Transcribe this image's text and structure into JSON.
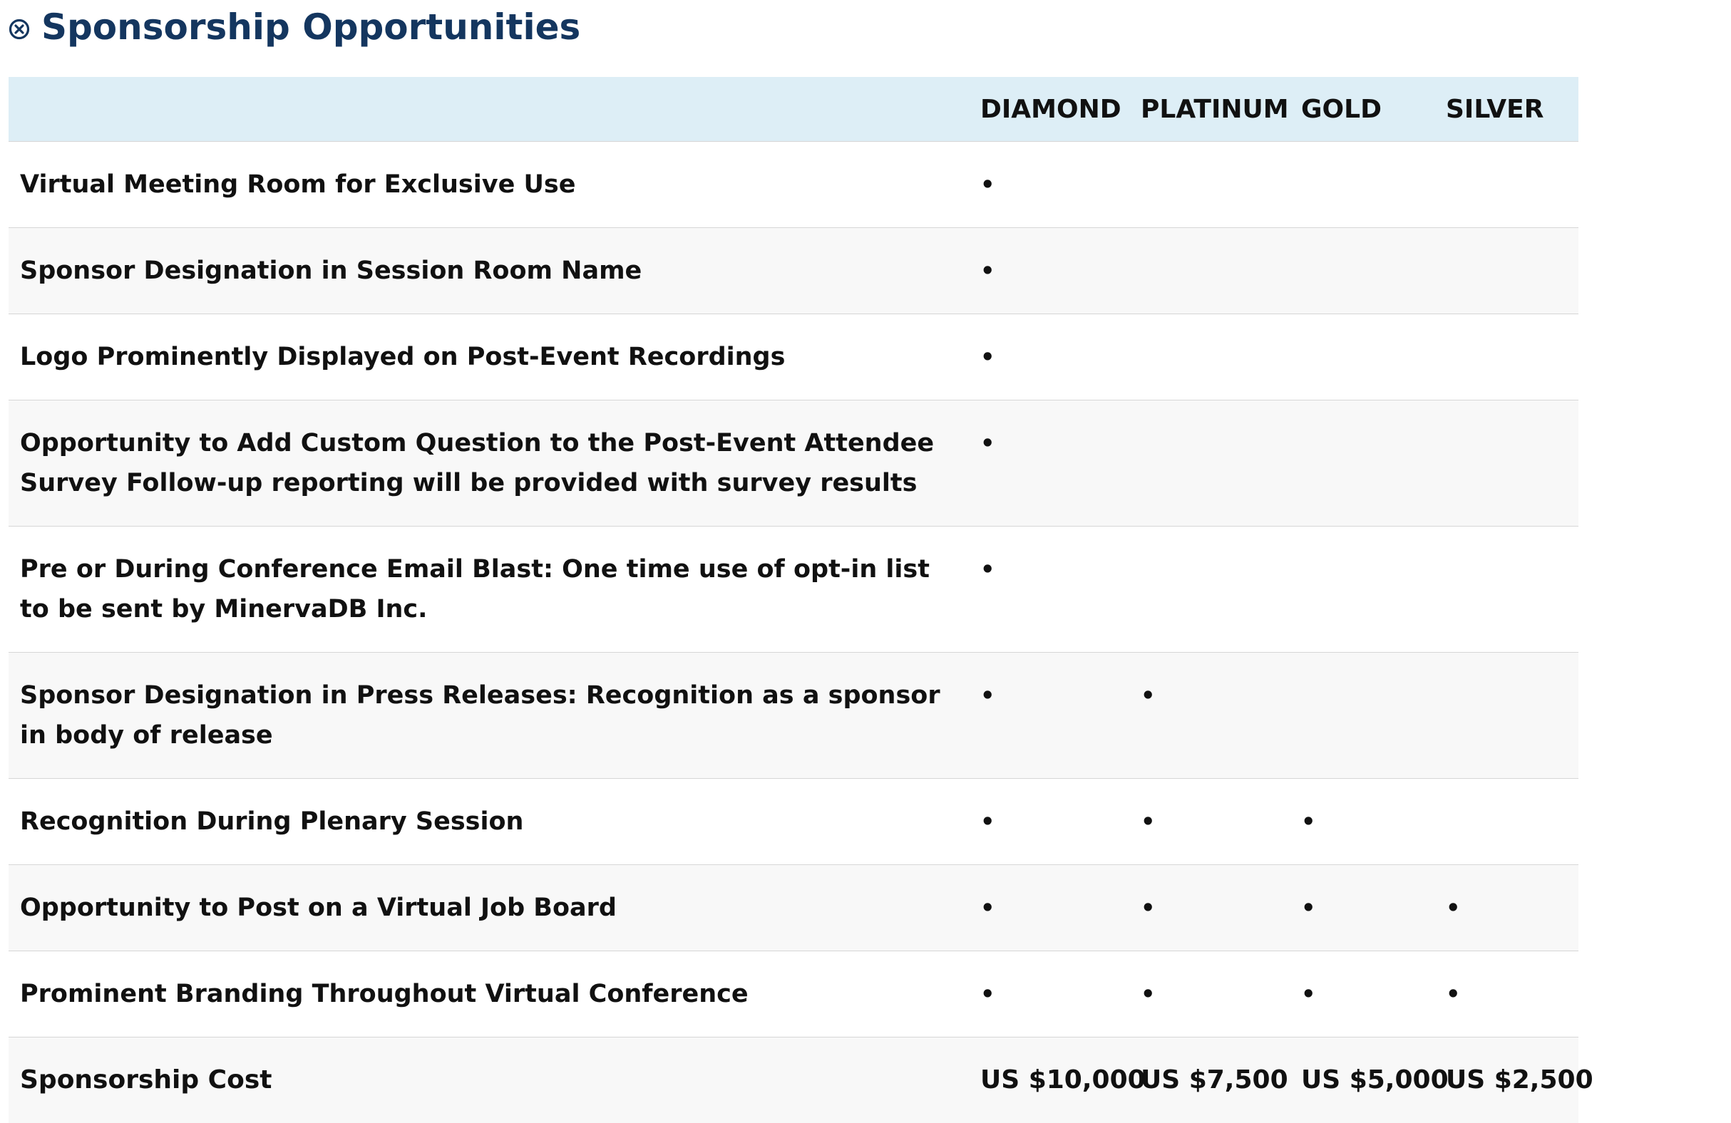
{
  "heading": {
    "icon": "circle-x-icon",
    "title": "Sponsorship Opportunities",
    "color": "#14365f"
  },
  "table": {
    "header_bg": "#ddeef6",
    "columns": [
      "",
      "DIAMOND",
      "PLATINUM",
      "GOLD",
      "SILVER"
    ],
    "rows": [
      {
        "feature": "Virtual Meeting Room for Exclusive Use",
        "marks": [
          "•",
          "",
          "",
          ""
        ]
      },
      {
        "feature": "Sponsor Designation in Session Room Name",
        "marks": [
          "•",
          "",
          "",
          ""
        ]
      },
      {
        "feature": "Logo Prominently Displayed on Post-Event Recordings",
        "marks": [
          "•",
          "",
          "",
          ""
        ]
      },
      {
        "feature": "Opportunity to Add Custom Question to the Post-Event Attendee Survey Follow-up reporting will be provided with survey results",
        "marks": [
          "•",
          "",
          "",
          ""
        ]
      },
      {
        "feature": "Pre or During Conference Email Blast: One time use of opt-in list to be sent by MinervaDB Inc.",
        "marks": [
          "•",
          "",
          "",
          ""
        ]
      },
      {
        "feature": "Sponsor Designation in Press Releases: Recognition as a sponsor in body of release",
        "marks": [
          "•",
          "•",
          "",
          ""
        ]
      },
      {
        "feature": "Recognition During Plenary Session",
        "marks": [
          "•",
          "•",
          "•",
          ""
        ]
      },
      {
        "feature": "Opportunity to Post on a Virtual Job Board",
        "marks": [
          "•",
          "•",
          "•",
          "•"
        ]
      },
      {
        "feature": "Prominent Branding Throughout Virtual Conference",
        "marks": [
          "•",
          "•",
          "•",
          "•"
        ]
      }
    ],
    "cost_row": {
      "label": "Sponsorship Cost",
      "prices": [
        "US $10,000",
        "US $7,500",
        "US $5,000",
        "US $2,500"
      ]
    }
  }
}
